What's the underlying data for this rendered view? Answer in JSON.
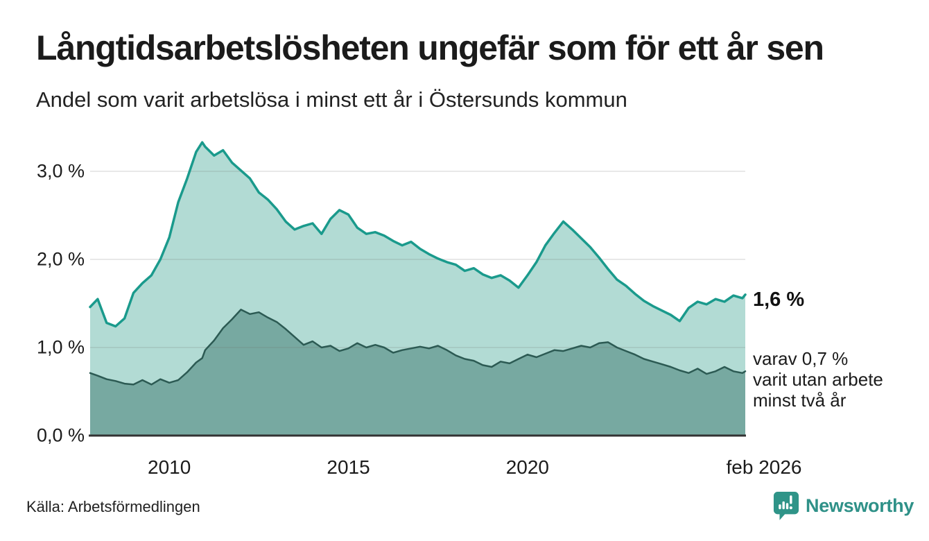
{
  "header": {
    "title": "Långtidsarbetslösheten ungefär som för ett år sen",
    "subtitle": "Andel som varit arbetslösa i minst ett år i Östersunds kommun"
  },
  "annotation": {
    "value_label": "1,6 %",
    "sub_lines": [
      "varav 0,7 %",
      "varit utan arbete",
      "minst två år"
    ]
  },
  "footer": {
    "source": "Källa: Arbetsförmedlingen",
    "brand": "Newsworthy",
    "brand_icon": "newsworthy-speech-bubble-bar-chart-icon"
  },
  "colors": {
    "line_1yr": "#1a9a8c",
    "fill_1yr": "#b2dbd4",
    "line_2yr": "#2c5a53",
    "fill_2yr": "#77a9a1",
    "gridline": "rgba(115,115,115,0.22)",
    "axis": "#333333",
    "text": "#1b1b1b",
    "brand_teal": "#2f9188"
  },
  "chart_data": {
    "type": "area",
    "title": "Långtidsarbetslösheten ungefär som för ett år sen",
    "subtitle": "Andel som varit arbetslösa i minst ett år i Östersunds kommun",
    "xlabel": "",
    "ylabel": "",
    "grid": true,
    "legend_position": "none",
    "xlim": [
      2007.79,
      2026.08
    ],
    "ylim": [
      0,
      3.41
    ],
    "x_ticks": [
      {
        "label": "2010",
        "year": 2010
      },
      {
        "label": "2015",
        "year": 2015
      },
      {
        "label": "2020",
        "year": 2020
      },
      {
        "label": "feb 2026",
        "year": 2026.08
      }
    ],
    "y_ticks": [
      {
        "label": "0,0 %",
        "value": 0
      },
      {
        "label": "1,0 %",
        "value": 1
      },
      {
        "label": "2,0 %",
        "value": 2
      },
      {
        "label": "3,0 %",
        "value": 3
      }
    ],
    "x": [
      2007.79,
      2008.0,
      2008.25,
      2008.5,
      2008.75,
      2009.0,
      2009.25,
      2009.5,
      2009.75,
      2010.0,
      2010.25,
      2010.5,
      2010.75,
      2010.92,
      2011.0,
      2011.25,
      2011.5,
      2011.75,
      2012.0,
      2012.25,
      2012.5,
      2012.75,
      2013.0,
      2013.25,
      2013.5,
      2013.75,
      2014.0,
      2014.25,
      2014.5,
      2014.75,
      2015.0,
      2015.25,
      2015.5,
      2015.75,
      2016.0,
      2016.25,
      2016.5,
      2016.75,
      2017.0,
      2017.25,
      2017.5,
      2017.75,
      2018.0,
      2018.25,
      2018.5,
      2018.75,
      2019.0,
      2019.25,
      2019.5,
      2019.75,
      2020.0,
      2020.25,
      2020.5,
      2020.75,
      2021.0,
      2021.25,
      2021.5,
      2021.75,
      2022.0,
      2022.25,
      2022.5,
      2022.75,
      2023.0,
      2023.25,
      2023.5,
      2023.75,
      2024.0,
      2024.25,
      2024.5,
      2024.75,
      2025.0,
      2025.25,
      2025.5,
      2025.75,
      2026.0,
      2026.08
    ],
    "series": [
      {
        "name": "Arbetslösa minst ett år",
        "end_label": "1,6 %",
        "color": "#1a9a8c",
        "fill": "#b2dbd4",
        "stroke_width": 3.5,
        "values": [
          1.46,
          1.55,
          1.28,
          1.24,
          1.33,
          1.62,
          1.73,
          1.82,
          2.0,
          2.25,
          2.65,
          2.92,
          3.22,
          3.33,
          3.28,
          3.18,
          3.24,
          3.1,
          3.01,
          2.92,
          2.76,
          2.68,
          2.57,
          2.43,
          2.34,
          2.38,
          2.41,
          2.29,
          2.46,
          2.56,
          2.51,
          2.36,
          2.29,
          2.31,
          2.27,
          2.21,
          2.16,
          2.2,
          2.12,
          2.06,
          2.01,
          1.97,
          1.94,
          1.87,
          1.9,
          1.83,
          1.79,
          1.82,
          1.76,
          1.68,
          1.82,
          1.97,
          2.16,
          2.3,
          2.43,
          2.34,
          2.24,
          2.14,
          2.02,
          1.89,
          1.77,
          1.7,
          1.61,
          1.53,
          1.47,
          1.42,
          1.37,
          1.3,
          1.45,
          1.52,
          1.49,
          1.55,
          1.52,
          1.59,
          1.56,
          1.6
        ]
      },
      {
        "name": "Arbetslösa minst två år",
        "end_label": "0,7 %",
        "color": "#2c5a53",
        "fill": "#77a9a1",
        "stroke_width": 2.5,
        "values": [
          0.71,
          0.68,
          0.64,
          0.62,
          0.59,
          0.58,
          0.63,
          0.58,
          0.64,
          0.6,
          0.63,
          0.72,
          0.83,
          0.88,
          0.97,
          1.08,
          1.22,
          1.32,
          1.43,
          1.38,
          1.4,
          1.34,
          1.29,
          1.21,
          1.12,
          1.03,
          1.07,
          1.0,
          1.02,
          0.96,
          0.99,
          1.05,
          1.0,
          1.03,
          1.0,
          0.94,
          0.97,
          0.99,
          1.01,
          0.99,
          1.02,
          0.97,
          0.91,
          0.87,
          0.85,
          0.8,
          0.78,
          0.84,
          0.82,
          0.87,
          0.92,
          0.89,
          0.93,
          0.97,
          0.96,
          0.99,
          1.02,
          1.0,
          1.05,
          1.06,
          1.0,
          0.96,
          0.92,
          0.87,
          0.84,
          0.81,
          0.78,
          0.74,
          0.71,
          0.76,
          0.7,
          0.73,
          0.78,
          0.73,
          0.71,
          0.73
        ]
      }
    ]
  }
}
